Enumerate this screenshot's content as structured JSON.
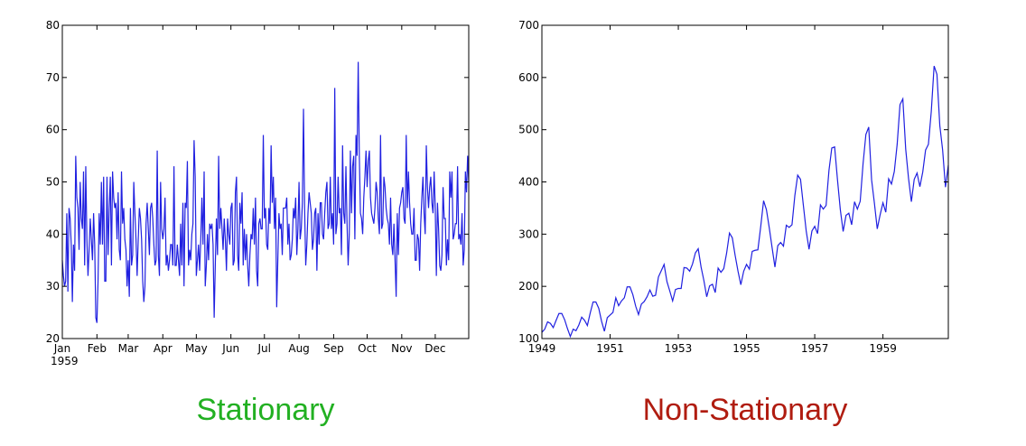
{
  "chart_data": [
    {
      "type": "line",
      "caption": "Stationary",
      "caption_color": "#22b022",
      "year_label": "1959",
      "xlim": [
        1,
        365
      ],
      "ylim": [
        20,
        80
      ],
      "yticks": [
        20,
        30,
        40,
        50,
        60,
        70,
        80
      ],
      "xticks": [
        {
          "value": 1,
          "label": "Jan"
        },
        {
          "value": 32,
          "label": "Feb"
        },
        {
          "value": 60,
          "label": "Mar"
        },
        {
          "value": 91,
          "label": "Apr"
        },
        {
          "value": 121,
          "label": "May"
        },
        {
          "value": 152,
          "label": "Jun"
        },
        {
          "value": 182,
          "label": "Jul"
        },
        {
          "value": 213,
          "label": "Aug"
        },
        {
          "value": 244,
          "label": "Sep"
        },
        {
          "value": 274,
          "label": "Oct"
        },
        {
          "value": 305,
          "label": "Nov"
        },
        {
          "value": 335,
          "label": "Dec"
        }
      ],
      "x": [
        1,
        2,
        3,
        4,
        5,
        6,
        7,
        8,
        9,
        10,
        11,
        12,
        13,
        14,
        15,
        16,
        17,
        18,
        19,
        20,
        21,
        22,
        23,
        24,
        25,
        26,
        27,
        28,
        29,
        30,
        31,
        32,
        33,
        34,
        35,
        36,
        37,
        38,
        39,
        40,
        41,
        42,
        43,
        44,
        45,
        46,
        47,
        48,
        49,
        50,
        51,
        52,
        53,
        54,
        55,
        56,
        57,
        58,
        59,
        60,
        61,
        62,
        63,
        64,
        65,
        66,
        67,
        68,
        69,
        70,
        71,
        72,
        73,
        74,
        75,
        76,
        77,
        78,
        79,
        80,
        81,
        82,
        83,
        84,
        85,
        86,
        87,
        88,
        89,
        90,
        91,
        92,
        93,
        94,
        95,
        96,
        97,
        98,
        99,
        100,
        101,
        102,
        103,
        104,
        105,
        106,
        107,
        108,
        109,
        110,
        111,
        112,
        113,
        114,
        115,
        116,
        117,
        118,
        119,
        120,
        121,
        122,
        123,
        124,
        125,
        126,
        127,
        128,
        129,
        130,
        131,
        132,
        133,
        134,
        135,
        136,
        137,
        138,
        139,
        140,
        141,
        142,
        143,
        144,
        145,
        146,
        147,
        148,
        149,
        150,
        151,
        152,
        153,
        154,
        155,
        156,
        157,
        158,
        159,
        160,
        161,
        162,
        163,
        164,
        165,
        166,
        167,
        168,
        169,
        170,
        171,
        172,
        173,
        174,
        175,
        176,
        177,
        178,
        179,
        180,
        181,
        182,
        183,
        184,
        185,
        186,
        187,
        188,
        189,
        190,
        191,
        192,
        193,
        194,
        195,
        196,
        197,
        198,
        199,
        200,
        201,
        202,
        203,
        204,
        205,
        206,
        207,
        208,
        209,
        210,
        211,
        212,
        213,
        214,
        215,
        216,
        217,
        218,
        219,
        220,
        221,
        222,
        223,
        224,
        225,
        226,
        227,
        228,
        229,
        230,
        231,
        232,
        233,
        234,
        235,
        236,
        237,
        238,
        239,
        240,
        241,
        242,
        243,
        244,
        245,
        246,
        247,
        248,
        249,
        250,
        251,
        252,
        253,
        254,
        255,
        256,
        257,
        258,
        259,
        260,
        261,
        262,
        263,
        264,
        265,
        266,
        267,
        268,
        269,
        270,
        271,
        272,
        273,
        274,
        275,
        276,
        277,
        278,
        279,
        280,
        281,
        282,
        283,
        284,
        285,
        286,
        287,
        288,
        289,
        290,
        291,
        292,
        293,
        294,
        295,
        296,
        297,
        298,
        299,
        300,
        301,
        302,
        303,
        304,
        305,
        306,
        307,
        308,
        309,
        310,
        311,
        312,
        313,
        314,
        315,
        316,
        317,
        318,
        319,
        320,
        321,
        322,
        323,
        324,
        325,
        326,
        327,
        328,
        329,
        330,
        331,
        332,
        333,
        334,
        335,
        336,
        337,
        338,
        339,
        340,
        341,
        342,
        343,
        344,
        345,
        346,
        347,
        348,
        349,
        350,
        351,
        352,
        353,
        354,
        355,
        356,
        357,
        358,
        359,
        360,
        361,
        362,
        363,
        364,
        365
      ],
      "series": [
        {
          "color": "#2020e0",
          "values": [
            35,
            32,
            30,
            31,
            44,
            29,
            45,
            43,
            38,
            27,
            38,
            33,
            55,
            47,
            45,
            37,
            50,
            43,
            41,
            52,
            34,
            53,
            39,
            32,
            37,
            43,
            39,
            35,
            44,
            38,
            24,
            23,
            31,
            44,
            38,
            50,
            38,
            51,
            31,
            31,
            51,
            36,
            45,
            51,
            34,
            52,
            47,
            45,
            46,
            39,
            48,
            37,
            35,
            52,
            42,
            45,
            39,
            37,
            30,
            35,
            28,
            45,
            34,
            36,
            50,
            44,
            39,
            32,
            39,
            45,
            43,
            39,
            31,
            27,
            30,
            42,
            46,
            41,
            36,
            45,
            46,
            43,
            38,
            34,
            35,
            56,
            36,
            32,
            50,
            41,
            39,
            41,
            47,
            34,
            36,
            33,
            35,
            38,
            38,
            34,
            53,
            34,
            34,
            38,
            35,
            32,
            42,
            34,
            46,
            30,
            46,
            45,
            54,
            34,
            37,
            35,
            40,
            42,
            58,
            51,
            32,
            35,
            38,
            33,
            39,
            47,
            38,
            52,
            30,
            34,
            40,
            35,
            42,
            41,
            42,
            38,
            24,
            34,
            43,
            36,
            55,
            41,
            45,
            41,
            37,
            43,
            39,
            33,
            43,
            40,
            38,
            45,
            46,
            34,
            35,
            48,
            51,
            36,
            33,
            46,
            42,
            48,
            34,
            41,
            35,
            40,
            34,
            30,
            36,
            40,
            39,
            45,
            38,
            47,
            33,
            30,
            42,
            43,
            41,
            41,
            59,
            43,
            45,
            38,
            37,
            45,
            42,
            57,
            46,
            51,
            41,
            47,
            26,
            35,
            44,
            41,
            42,
            36,
            45,
            45,
            45,
            47,
            38,
            42,
            35,
            36,
            39,
            45,
            43,
            47,
            36,
            41,
            50,
            39,
            41,
            46,
            64,
            45,
            34,
            38,
            44,
            48,
            46,
            44,
            37,
            39,
            44,
            45,
            33,
            44,
            38,
            46,
            46,
            40,
            39,
            44,
            48,
            50,
            41,
            42,
            51,
            41,
            44,
            38,
            68,
            40,
            42,
            51,
            44,
            45,
            36,
            57,
            44,
            42,
            53,
            42,
            34,
            40,
            56,
            44,
            53,
            55,
            39,
            59,
            55,
            73,
            55,
            44,
            43,
            40,
            47,
            51,
            56,
            49,
            54,
            56,
            47,
            44,
            43,
            42,
            45,
            50,
            48,
            43,
            40,
            59,
            41,
            42,
            51,
            49,
            45,
            43,
            42,
            38,
            47,
            38,
            36,
            42,
            35,
            28,
            44,
            36,
            45,
            46,
            48,
            49,
            43,
            42,
            59,
            45,
            52,
            46,
            42,
            40,
            40,
            45,
            35,
            35,
            40,
            39,
            33,
            42,
            47,
            51,
            44,
            40,
            57,
            49,
            45,
            49,
            51,
            46,
            44,
            52,
            45,
            32,
            46,
            41,
            34,
            33,
            36,
            49,
            43,
            43,
            34,
            39,
            35,
            52,
            47,
            52,
            39,
            40,
            42,
            42,
            53,
            39,
            40,
            38,
            44,
            34,
            37,
            52,
            48,
            55,
            50
          ]
        }
      ]
    },
    {
      "type": "line",
      "caption": "Non-Stationary",
      "caption_color": "#b01c10",
      "xlim": [
        1949,
        1960.917
      ],
      "ylim": [
        100,
        700
      ],
      "yticks": [
        100,
        200,
        300,
        400,
        500,
        600,
        700
      ],
      "xticks": [
        1949,
        1951,
        1953,
        1955,
        1957,
        1959
      ],
      "x": [
        1949,
        1949.083,
        1949.167,
        1949.25,
        1949.333,
        1949.417,
        1949.5,
        1949.583,
        1949.667,
        1949.75,
        1949.833,
        1949.917,
        1950,
        1950.083,
        1950.167,
        1950.25,
        1950.333,
        1950.417,
        1950.5,
        1950.583,
        1950.667,
        1950.75,
        1950.833,
        1950.917,
        1951,
        1951.083,
        1951.167,
        1951.25,
        1951.333,
        1951.417,
        1951.5,
        1951.583,
        1951.667,
        1951.75,
        1951.833,
        1951.917,
        1952,
        1952.083,
        1952.167,
        1952.25,
        1952.333,
        1952.417,
        1952.5,
        1952.583,
        1952.667,
        1952.75,
        1952.833,
        1952.917,
        1953,
        1953.083,
        1953.167,
        1953.25,
        1953.333,
        1953.417,
        1953.5,
        1953.583,
        1953.667,
        1953.75,
        1953.833,
        1953.917,
        1954,
        1954.083,
        1954.167,
        1954.25,
        1954.333,
        1954.417,
        1954.5,
        1954.583,
        1954.667,
        1954.75,
        1954.833,
        1954.917,
        1955,
        1955.083,
        1955.167,
        1955.25,
        1955.333,
        1955.417,
        1955.5,
        1955.583,
        1955.667,
        1955.75,
        1955.833,
        1955.917,
        1956,
        1956.083,
        1956.167,
        1956.25,
        1956.333,
        1956.417,
        1956.5,
        1956.583,
        1956.667,
        1956.75,
        1956.833,
        1956.917,
        1957,
        1957.083,
        1957.167,
        1957.25,
        1957.333,
        1957.417,
        1957.5,
        1957.583,
        1957.667,
        1957.75,
        1957.833,
        1957.917,
        1958,
        1958.083,
        1958.167,
        1958.25,
        1958.333,
        1958.417,
        1958.5,
        1958.583,
        1958.667,
        1958.75,
        1958.833,
        1958.917,
        1959,
        1959.083,
        1959.167,
        1959.25,
        1959.333,
        1959.417,
        1959.5,
        1959.583,
        1959.667,
        1959.75,
        1959.833,
        1959.917,
        1960,
        1960.083,
        1960.167,
        1960.25,
        1960.333,
        1960.417,
        1960.5,
        1960.583,
        1960.667,
        1960.75,
        1960.833,
        1960.917
      ],
      "series": [
        {
          "color": "#2020e0",
          "values": [
            112,
            118,
            132,
            129,
            121,
            135,
            148,
            148,
            136,
            119,
            104,
            118,
            115,
            126,
            141,
            135,
            125,
            149,
            170,
            170,
            158,
            133,
            114,
            140,
            145,
            150,
            178,
            163,
            172,
            178,
            199,
            199,
            184,
            162,
            146,
            166,
            171,
            180,
            193,
            181,
            183,
            218,
            230,
            242,
            209,
            191,
            172,
            194,
            196,
            196,
            236,
            235,
            229,
            243,
            264,
            272,
            237,
            211,
            180,
            201,
            204,
            188,
            235,
            227,
            234,
            264,
            302,
            293,
            259,
            229,
            203,
            229,
            242,
            233,
            267,
            269,
            270,
            315,
            364,
            347,
            312,
            274,
            237,
            278,
            284,
            277,
            317,
            313,
            318,
            374,
            413,
            405,
            355,
            306,
            271,
            306,
            315,
            301,
            356,
            348,
            355,
            422,
            465,
            467,
            404,
            347,
            305,
            336,
            340,
            318,
            362,
            348,
            363,
            435,
            491,
            505,
            404,
            359,
            310,
            337,
            360,
            342,
            406,
            396,
            420,
            472,
            548,
            559,
            463,
            407,
            362,
            405,
            417,
            391,
            419,
            461,
            472,
            535,
            622,
            606,
            508,
            461,
            390,
            432
          ]
        }
      ]
    }
  ]
}
